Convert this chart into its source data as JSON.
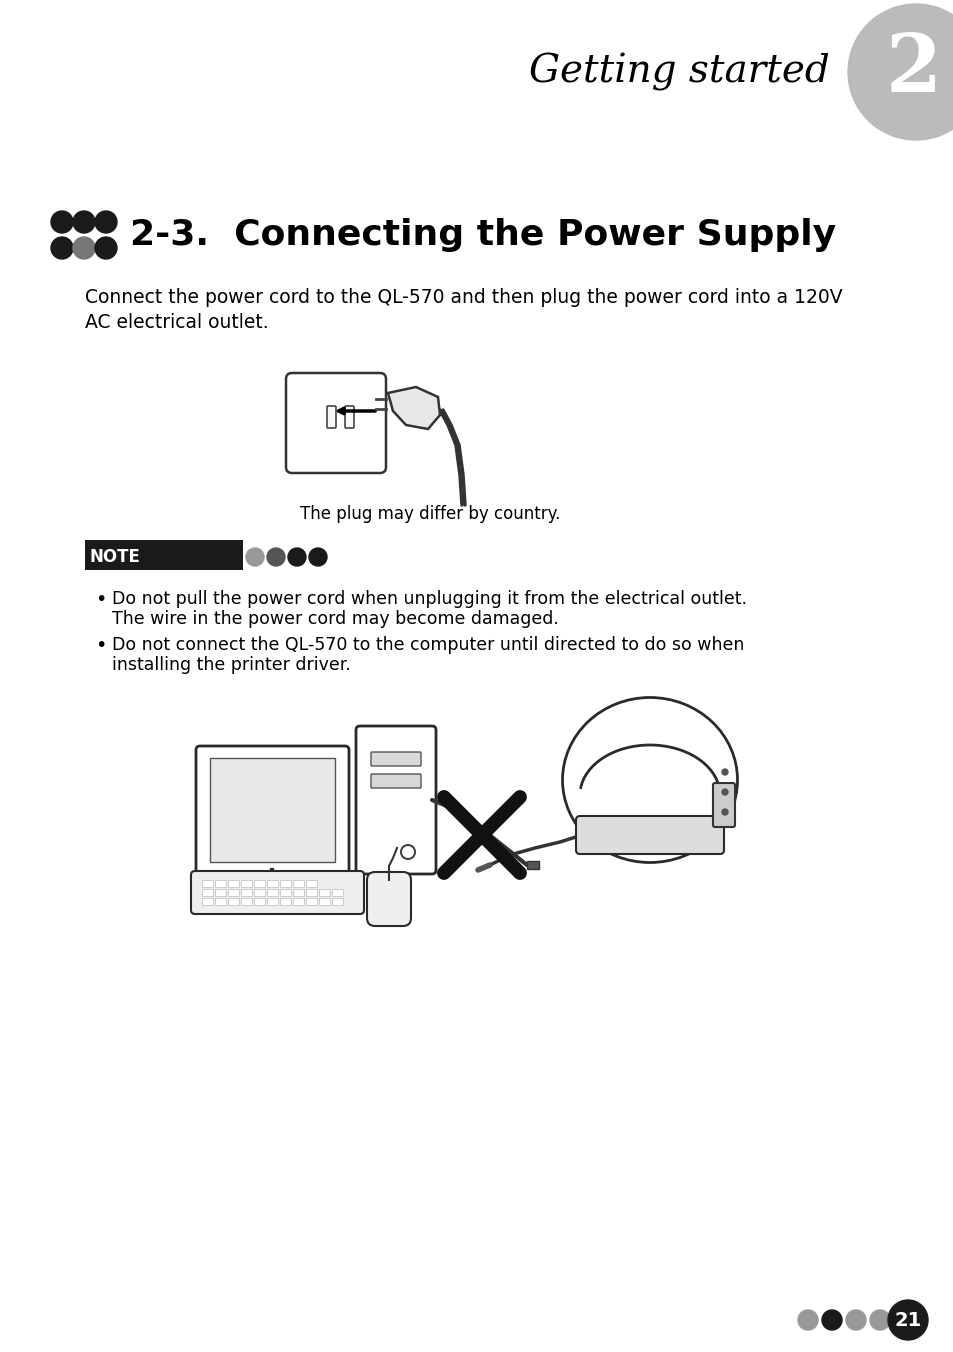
{
  "page_title": "Getting started",
  "chapter_num": "2",
  "section_title": "2-3.  Connecting the Power Supply",
  "body_text_line1": "Connect the power cord to the QL-570 and then plug the power cord into a 120V",
  "body_text_line2": "AC electrical outlet.",
  "plug_caption": "The plug may differ by country.",
  "note_label": "NOTE",
  "bullet1_line1": "Do not pull the power cord when unplugging it from the electrical outlet.",
  "bullet1_line2": "The wire in the power cord may become damaged.",
  "bullet2_line1": "Do not connect the QL-570 to the computer until directed to do so when",
  "bullet2_line2": "installing the printer driver.",
  "page_number": "21",
  "bg_color": "#ffffff",
  "text_color": "#000000",
  "circle_color": "#bbbbbb",
  "note_box_color": "#1a1a1a",
  "note_dot_colors": [
    "#999999",
    "#555555",
    "#1a1a1a",
    "#1a1a1a"
  ],
  "bottom_dot_colors": [
    "#999999",
    "#1a1a1a",
    "#999999",
    "#999999"
  ],
  "header_dot_colors": [
    "#1a1a1a",
    "#1a1a1a",
    "#1a1a1a",
    "#1a1a1a",
    "#777777",
    "#1a1a1a"
  ]
}
